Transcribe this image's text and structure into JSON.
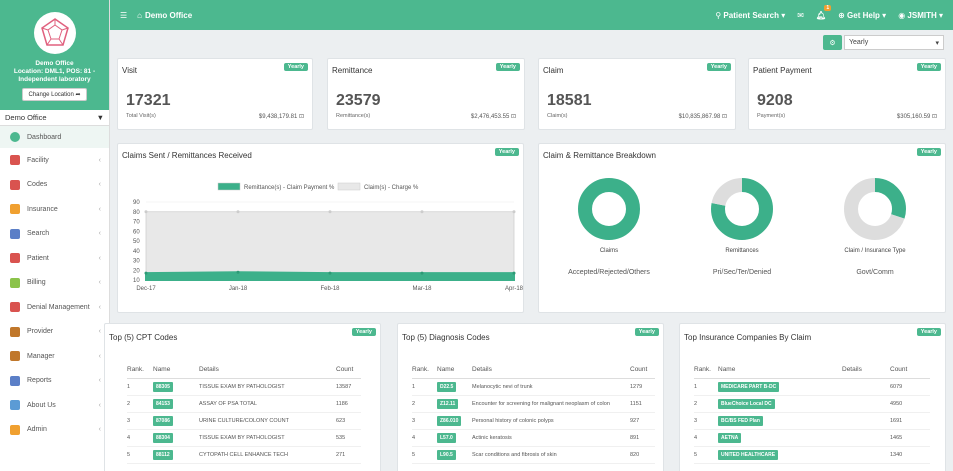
{
  "sidebar": {
    "office_name": "Demo Office",
    "office_detail1": "Location: DML1, POS: 81 -",
    "office_detail2": "Independent laboratory",
    "change_location": "Change Location",
    "office_select": "Demo Office",
    "items": [
      {
        "label": "Dashboard",
        "color": "#4cb88f"
      },
      {
        "label": "Facility",
        "color": "#d9534f"
      },
      {
        "label": "Codes",
        "color": "#d9534f"
      },
      {
        "label": "Insurance",
        "color": "#f0a030"
      },
      {
        "label": "Search",
        "color": "#5b7fc7"
      },
      {
        "label": "Patient",
        "color": "#d9534f"
      },
      {
        "label": "Billing",
        "color": "#8bc34a"
      },
      {
        "label": "Denial Management",
        "color": "#d9534f"
      },
      {
        "label": "Provider",
        "color": "#c0772b"
      },
      {
        "label": "Manager",
        "color": "#c0772b"
      },
      {
        "label": "Reports",
        "color": "#5b7fc7"
      },
      {
        "label": "About Us",
        "color": "#5b9bd5"
      },
      {
        "label": "Admin",
        "color": "#f0a030"
      }
    ]
  },
  "topbar": {
    "title": "Demo Office",
    "patient_search": "Patient Search",
    "notif_count": "1",
    "help": "Get Help",
    "user": "JSMITH"
  },
  "filter": {
    "selected": "Yearly",
    "badge": "Yearly"
  },
  "stats": [
    {
      "title": "Visit",
      "count": "17321",
      "sub": "Total Visit(s)",
      "amount": "$9,438,179.81"
    },
    {
      "title": "Remittance",
      "count": "23579",
      "sub": "Remittance(s)",
      "amount": "$2,476,453.55"
    },
    {
      "title": "Claim",
      "count": "18581",
      "sub": "Claim(s)",
      "amount": "$10,835,867.98"
    },
    {
      "title": "Patient Payment",
      "count": "9208",
      "sub": "Payment(s)",
      "amount": "$305,160.59"
    }
  ],
  "claims_chart": {
    "title": "Claims Sent / Remittances Received"
  },
  "breakdown": {
    "title": "Claim & Remittance Breakdown",
    "donuts": [
      {
        "label": "Claims",
        "sub": "Accepted/Rejected/Others"
      },
      {
        "label": "Remittances",
        "sub": "Pri/Sec/Ter/Denied"
      },
      {
        "label": "Claim / Insurance Type",
        "sub": "Govt/Comm"
      }
    ]
  },
  "chart_data": [
    {
      "type": "area",
      "title": "",
      "categories": [
        "Dec-17",
        "Jan-18",
        "Feb-18",
        "Mar-18",
        "Apr-18"
      ],
      "yticks": [
        10,
        20,
        30,
        40,
        50,
        60,
        70,
        80,
        90
      ],
      "ylim": [
        10,
        90
      ],
      "series": [
        {
          "name": "Remittance(s) - Claim Payment %",
          "values": [
            17,
            18,
            17,
            17,
            17
          ],
          "color": "#3cb08a"
        },
        {
          "name": "Claim(s) - Charge %",
          "values": [
            80,
            80,
            80,
            80,
            80
          ],
          "color": "#e8e8e8"
        }
      ],
      "legend": "top"
    },
    {
      "type": "pie",
      "title": "Claims",
      "values": [
        100
      ],
      "colors": [
        "#3cb08a"
      ]
    },
    {
      "type": "pie",
      "title": "Remittances",
      "values": [
        78,
        22
      ],
      "colors": [
        "#3cb08a",
        "#dddddd"
      ]
    },
    {
      "type": "pie",
      "title": "Claim / Insurance Type",
      "values": [
        30,
        70
      ],
      "colors": [
        "#3cb08a",
        "#dddddd"
      ]
    }
  ],
  "cpt": {
    "title": "Top (5) CPT Codes",
    "headers": [
      "Rank.",
      "Name",
      "Details",
      "Count"
    ],
    "rows": [
      [
        "1",
        "88305",
        "TISSUE EXAM BY PATHOLOGIST",
        "13587"
      ],
      [
        "2",
        "84153",
        "ASSAY OF PSA TOTAL",
        "1186"
      ],
      [
        "3",
        "87086",
        "URINE CULTURE/COLONY COUNT",
        "623"
      ],
      [
        "4",
        "88304",
        "TISSUE EXAM BY PATHOLOGIST",
        "535"
      ],
      [
        "5",
        "88112",
        "CYTOPATH CELL ENHANCE TECH",
        "271"
      ]
    ]
  },
  "dx": {
    "title": "Top (5) Diagnosis Codes",
    "headers": [
      "Rank.",
      "Name",
      "Details",
      "Count"
    ],
    "rows": [
      [
        "1",
        "D22.5",
        "Melanocytic nevi of trunk",
        "1279"
      ],
      [
        "2",
        "Z12.11",
        "Encounter for screening for malignant neoplasm of colon",
        "1151"
      ],
      [
        "3",
        "Z86.010",
        "Personal history of colonic polyps",
        "927"
      ],
      [
        "4",
        "L57.0",
        "Actinic keratosis",
        "891"
      ],
      [
        "5",
        "L90.5",
        "Scar conditions and fibrosis of skin",
        "820"
      ]
    ]
  },
  "ins": {
    "title": "Top Insurance Companies By Claim",
    "headers": [
      "Rank.",
      "Name",
      "Details",
      "Count"
    ],
    "rows": [
      [
        "1",
        "MEDICARE PART B-DC",
        "",
        "6079"
      ],
      [
        "2",
        "BlueChoice Local DC",
        "",
        "4950"
      ],
      [
        "3",
        "BC/BS FED Plan",
        "",
        "1691"
      ],
      [
        "4",
        "AETNA",
        "",
        "1465"
      ],
      [
        "5",
        "UNITED HEALTHCARE",
        "",
        "1340"
      ]
    ]
  }
}
